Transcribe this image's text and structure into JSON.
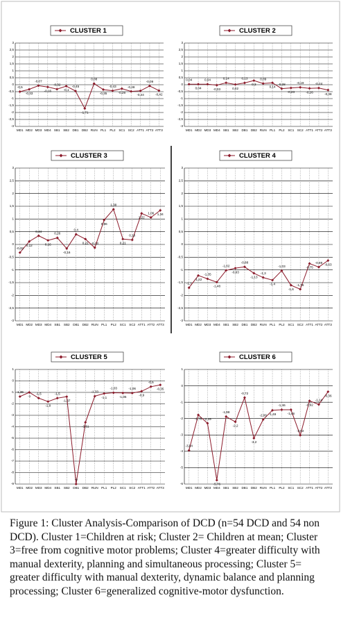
{
  "chart_data": [
    {
      "type": "line",
      "categories": [
        "MD1",
        "MD2",
        "MD3",
        "MD4",
        "SB1",
        "SB2",
        "DB1",
        "DB2",
        "RUN",
        "PL1",
        "PL2",
        "SC1",
        "SC2",
        "ATT1",
        "ATT2",
        "ATT3"
      ],
      "series": [
        {
          "name": "CLUSTER 1",
          "color": "#8b1a2a",
          "values": [
            -0.5,
            -0.33,
            -0.07,
            -0.16,
            -0.32,
            -0.1,
            -0.45,
            -1.71,
            0.08,
            -0.35,
            -0.43,
            -0.28,
            -0.48,
            -0.44,
            -0.09,
            -0.42
          ],
          "value_labels": [
            "-0,5",
            "-0,33",
            "-0,07",
            "-0,16",
            "-0,32",
            "-0,1",
            "-0,45",
            "-1,71",
            "0,08",
            "-0,35",
            "-0,43",
            "-0,28",
            "-0,48",
            "-0,44",
            "-0,09",
            "-0,42"
          ]
        }
      ],
      "ylim": [
        -3,
        3
      ],
      "yticks": [
        3,
        {
          "value": 2.5,
          "label": "2,5"
        },
        2,
        {
          "value": 1.5,
          "label": "1,5"
        },
        1,
        {
          "value": 0.5,
          "label": "0,5"
        },
        0,
        {
          "value": -0.5,
          "label": "-0,5"
        },
        -1,
        {
          "value": -1.5,
          "label": "-1,5"
        },
        -2,
        {
          "value": -2.5,
          "label": "-2,5"
        },
        -3
      ]
    },
    {
      "type": "line",
      "categories": [
        "MD1",
        "MD2",
        "MD3",
        "MD4",
        "SB1",
        "SB2",
        "DB1",
        "DB2",
        "RUN",
        "PL1",
        "PL2",
        "SC1",
        "SC2",
        "ATT1",
        "ATT2",
        "ATT3"
      ],
      "series": [
        {
          "name": "CLUSTER 2",
          "color": "#8b1a2a",
          "values": [
            0.04,
            0.04,
            0.04,
            -0.03,
            0.14,
            0.02,
            0.13,
            0.3,
            0.09,
            0.14,
            -0.28,
            -0.23,
            -0.19,
            -0.26,
            -0.24,
            -0.38
          ],
          "value_labels": [
            "0,04",
            "0,04",
            "0,04",
            "-0,03",
            "0,14",
            "0,02",
            "0,13",
            "0,3",
            "0,09",
            "0,14",
            "-0,28",
            "-0,23",
            "-0,19",
            "-0,26",
            "-0,24",
            "-0,38"
          ]
        }
      ],
      "ylim": [
        -3,
        3
      ],
      "yticks": [
        3,
        {
          "value": 2.5,
          "label": "2,5"
        },
        2,
        {
          "value": 1.5,
          "label": "1,5"
        },
        1,
        {
          "value": 0.5,
          "label": "0,5"
        },
        0,
        {
          "value": -0.5,
          "label": "-0,5"
        },
        -1,
        {
          "value": -1.5,
          "label": "-1,5"
        },
        -2,
        {
          "value": -2.5,
          "label": "-2,5"
        },
        -3
      ]
    },
    {
      "type": "line",
      "categories": [
        "MD1",
        "MD2",
        "MD3",
        "MD4",
        "SB1",
        "SB2",
        "DB1",
        "DB2",
        "RUN",
        "PL1",
        "PL2",
        "SC1",
        "SC2",
        "ATT1",
        "ATT2",
        "ATT3"
      ],
      "series": [
        {
          "name": "CLUSTER 3",
          "color": "#8b1a2a",
          "values": [
            -0.32,
            0.12,
            0.34,
            0.16,
            0.26,
            -0.16,
            0.4,
            0.21,
            -0.13,
            0.96,
            1.38,
            0.21,
            0.18,
            1.22,
            1.06,
            1.34
          ],
          "value_labels": [
            "-0,32",
            "0,12",
            "0,34",
            "0,16",
            "0,26",
            "-0,16",
            "0,4",
            "0,21",
            "-0,13",
            "0,96",
            "1,38",
            "0,21",
            "0,18",
            "1,22",
            "1,06",
            "1,34"
          ]
        }
      ],
      "ylim": [
        -3,
        3
      ],
      "yticks": [
        3,
        {
          "value": 2.5,
          "label": "2,5"
        },
        2,
        {
          "value": 1.5,
          "label": "1,5"
        },
        1,
        {
          "value": 0.5,
          "label": "0,5"
        },
        0,
        {
          "value": -0.5,
          "label": "-0,5"
        },
        -1,
        {
          "value": -1.5,
          "label": "-1,5"
        },
        -2,
        {
          "value": -2.5,
          "label": "-2,5"
        },
        -3
      ]
    },
    {
      "type": "line",
      "categories": [
        "MD1",
        "MD2",
        "MD3",
        "MD4",
        "SB1",
        "SB2",
        "DB1",
        "DB2",
        "RUN",
        "PL1",
        "PL2",
        "SC1",
        "SC2",
        "ATT1",
        "ATT2",
        "ATT3"
      ],
      "series": [
        {
          "name": "CLUSTER 4",
          "color": "#8b1a2a",
          "values": [
            -1.7,
            -1.22,
            -1.35,
            -1.48,
            -1.02,
            -0.93,
            -0.88,
            -1.13,
            -1.3,
            -1.4,
            -1.03,
            -1.6,
            -1.76,
            -0.75,
            -0.89,
            -0.63
          ],
          "value_labels": [
            "-1,7",
            "-1,22",
            "-1,35",
            "-1,48",
            "-1,02",
            "-0,93",
            "-0,88",
            "-1,13",
            "-1,3",
            "-1,4",
            "-1,03",
            "-1,6",
            "-1,76",
            "-0,75",
            "-0,89",
            "-0,63"
          ]
        }
      ],
      "ylim": [
        -3,
        3
      ],
      "yticks": [
        3,
        {
          "value": 2.5,
          "label": "2,5"
        },
        2,
        {
          "value": 1.5,
          "label": "1,5"
        },
        1,
        {
          "value": 0.5,
          "label": "0,5"
        },
        0,
        {
          "value": -0.5,
          "label": "-0,5"
        },
        -1,
        {
          "value": -1.5,
          "label": "-1,5"
        },
        -2,
        {
          "value": -2.5,
          "label": "-2,5"
        },
        -3
      ]
    },
    {
      "type": "line",
      "categories": [
        "MD1",
        "MD2",
        "MD3",
        "MD4",
        "SB1",
        "SB2",
        "DB1",
        "DB2",
        "RUN",
        "PL1",
        "PL2",
        "SC1",
        "SC2",
        "ATT1",
        "ATT2",
        "ATT3"
      ],
      "series": [
        {
          "name": "CLUSTER 5",
          "color": "#8b1a2a",
          "values": [
            -1.36,
            -1.0,
            -1.5,
            -1.8,
            -1.5,
            -1.37,
            -9.0,
            -3.61,
            -1.33,
            -1.1,
            -1.03,
            -1.05,
            -1.06,
            -0.9,
            -0.5,
            -0.35
          ],
          "value_labels": [
            "-1,36",
            "-1",
            "-1,5",
            "-1,8",
            "-1,5",
            "-1,37",
            "-9",
            "-3,61",
            "-1,33",
            "-1,1",
            "-1,03",
            "-1,05",
            "-1,06",
            "-0,9",
            "-0,5",
            "-0,35"
          ]
        }
      ],
      "ylim": [
        -9,
        1
      ],
      "yticks": [
        1,
        0,
        -1,
        -2,
        -3,
        -4,
        -5,
        -6,
        -7,
        -8,
        -9
      ]
    },
    {
      "type": "line",
      "categories": [
        "MD1",
        "MD2",
        "MD3",
        "MD4",
        "SB1",
        "SB2",
        "DB1",
        "DB2",
        "RUN",
        "PL1",
        "PL2",
        "SC1",
        "SC2",
        "ATT1",
        "ATT2",
        "ATT3"
      ],
      "series": [
        {
          "name": "CLUSTER 6",
          "color": "#8b1a2a",
          "values": [
            -3.94,
            -1.78,
            -2.29,
            -5.76,
            -1.88,
            -2.2,
            -0.72,
            -3.2,
            -2.06,
            -1.49,
            -1.46,
            -1.46,
            -3.02,
            -0.92,
            -1.14,
            -0.36
          ],
          "value_labels": [
            "-3,94",
            "-1,78",
            "-2,29",
            "-5,76",
            "-1,88",
            "-2,2",
            "-0,72",
            "-3,2",
            "-2,06",
            "-1,49",
            "-1,46",
            "-1,46",
            "-3,02",
            "-0,92",
            "-1,14",
            "-0,36"
          ]
        }
      ],
      "ylim": [
        -6,
        1
      ],
      "yticks": [
        1,
        0,
        -1,
        -2,
        -3,
        -4,
        -5,
        -6
      ]
    }
  ],
  "caption": {
    "label": "Figure 1:",
    "text": "Cluster Analysis-Comparison of DCD (n=54 DCD and 54 non DCD). Cluster 1=Children at risk; Cluster 2= Children at mean; Cluster 3=free from cognitive motor problems; Cluster 4=greater difficulty with manual dexterity, planning and simultaneous processing; Cluster 5= greater difficulty with manual dexterity, dynamic balance and planning processing; Cluster 6=generalized cognitive-motor dysfunction."
  }
}
